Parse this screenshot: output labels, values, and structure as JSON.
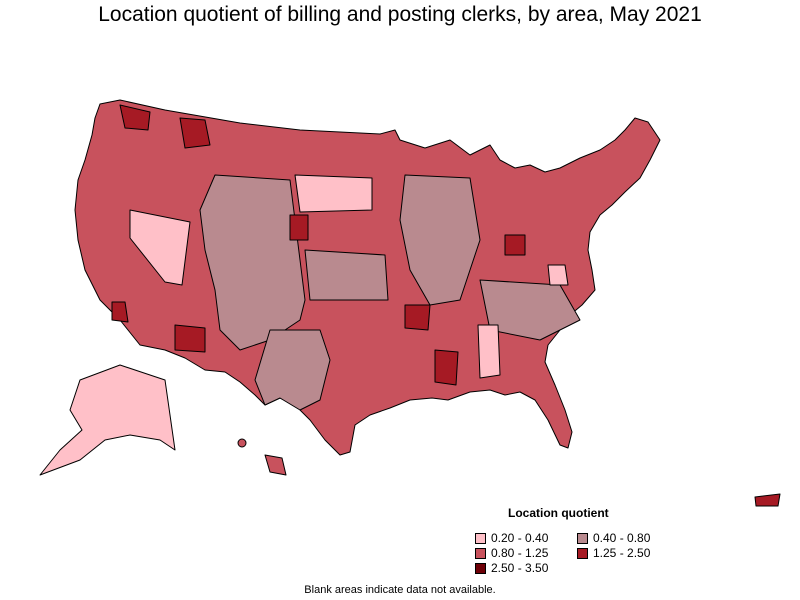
{
  "title": "Location quotient of billing and posting clerks, by area, May 2021",
  "legend": {
    "title": "Location quotient",
    "items": [
      {
        "label": "0.20 - 0.40",
        "color": "#ffc0c8"
      },
      {
        "label": "0.40 - 0.80",
        "color": "#b98a8f"
      },
      {
        "label": "0.80 - 1.25",
        "color": "#c8525d"
      },
      {
        "label": "1.25 - 2.50",
        "color": "#a61a24"
      },
      {
        "label": "2.50 - 3.50",
        "color": "#6e0007"
      }
    ]
  },
  "footnote": "Blank areas indicate data not available.",
  "colors": {
    "border": "#000000",
    "background": "#ffffff"
  }
}
